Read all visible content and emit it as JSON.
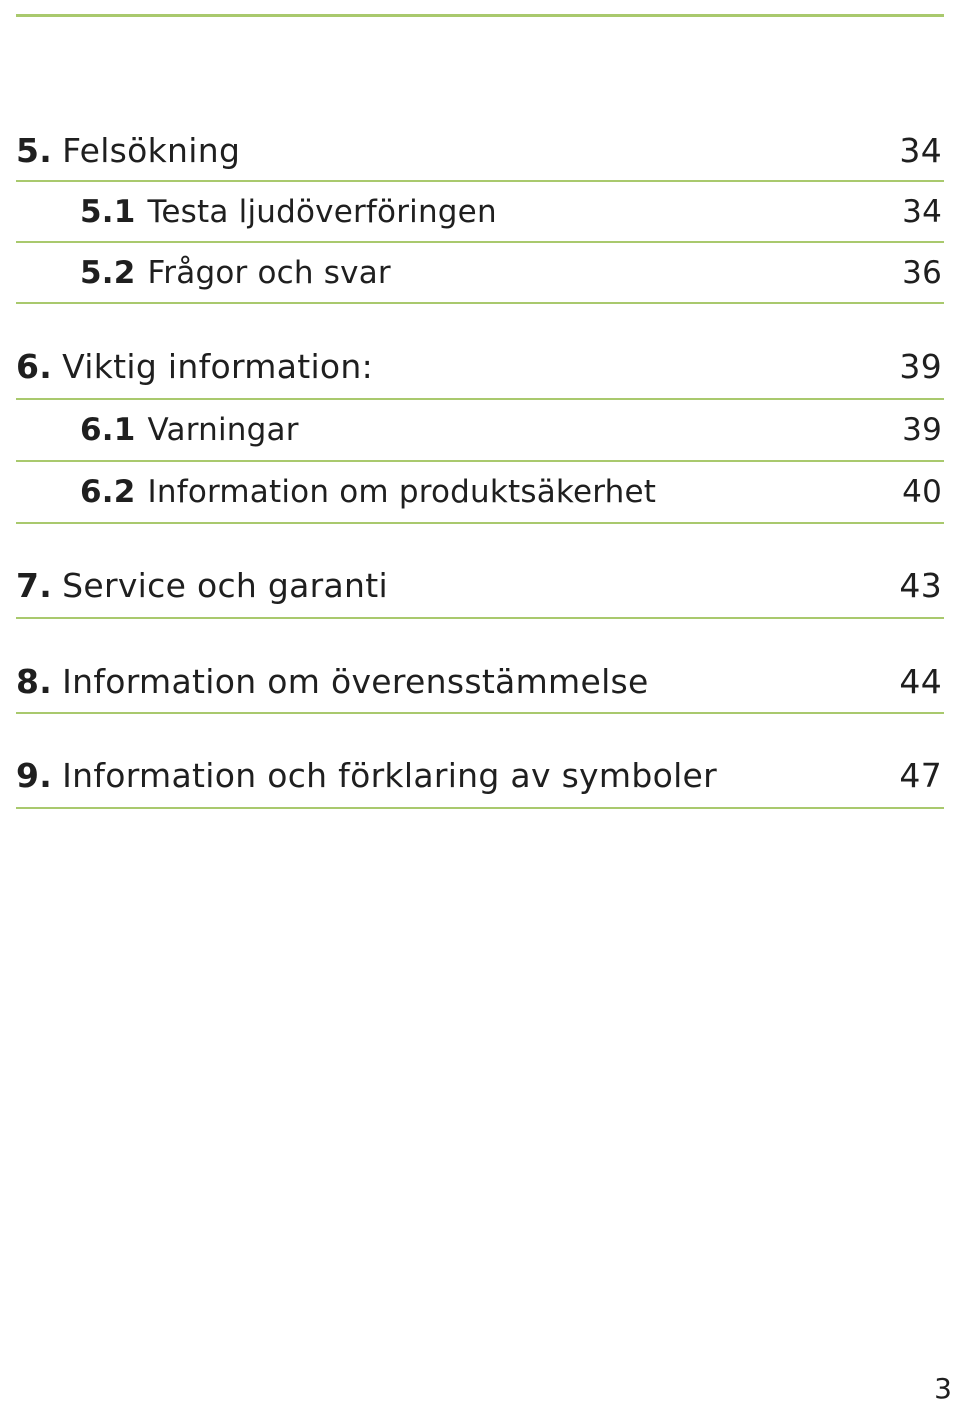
{
  "toc": {
    "entries": [
      {
        "num": "5.",
        "title": "Felsökning",
        "page": "34"
      },
      {
        "num": "5.1",
        "title": "Testa ljudöverföringen",
        "page": "34"
      },
      {
        "num": "5.2",
        "title": "Frågor och svar",
        "page": "36"
      },
      {
        "num": "6.",
        "title": "Viktig information:",
        "page": "39"
      },
      {
        "num": "6.1",
        "title": "Varningar",
        "page": "39"
      },
      {
        "num": "6.2",
        "title": "Information om produktsäkerhet",
        "page": "40"
      },
      {
        "num": "7.",
        "title": "Service och garanti",
        "page": "43"
      },
      {
        "num": "8.",
        "title": "Information om överensstämmelse",
        "page": "44"
      },
      {
        "num": "9.",
        "title": "Information och förklaring av symboler",
        "page": "47"
      }
    ]
  },
  "footer": {
    "page_number": "3"
  },
  "colors": {
    "rule": "#a9c96d",
    "text": "#1f1f1f"
  }
}
